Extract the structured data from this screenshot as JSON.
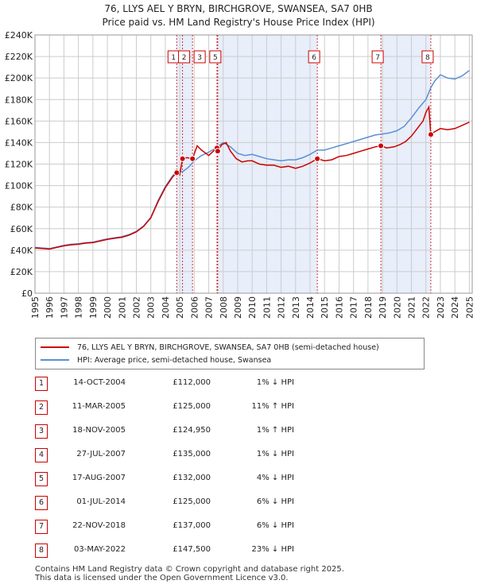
{
  "title_line1": "76, LLYS AEL Y BRYN, BIRCHGROVE, SWANSEA, SA7 0HB",
  "title_line2": "Price paid vs. HM Land Registry's House Price Index (HPI)",
  "colors": {
    "red": "#cc0000",
    "blue": "#5b8fd4",
    "shade": "#e8eefa",
    "grid": "#cccccc"
  },
  "chart_data": {
    "type": "line",
    "title": "76, LLYS AEL Y BRYN, BIRCHGROVE, SWANSEA, SA7 0HB — Price paid vs. HM Land Registry's House Price Index (HPI)",
    "xlim": [
      1995,
      2025.2
    ],
    "ylim": [
      0,
      240000
    ],
    "x_ticks": [
      1995,
      1996,
      1997,
      1998,
      1999,
      2000,
      2001,
      2002,
      2003,
      2004,
      2005,
      2006,
      2007,
      2008,
      2009,
      2010,
      2011,
      2012,
      2013,
      2014,
      2015,
      2016,
      2017,
      2018,
      2019,
      2020,
      2021,
      2022,
      2023,
      2024,
      2025
    ],
    "y_ticks": [
      0,
      20000,
      40000,
      60000,
      80000,
      100000,
      120000,
      140000,
      160000,
      180000,
      200000,
      220000,
      240000
    ],
    "y_tick_labels": [
      "£0",
      "£20K",
      "£40K",
      "£60K",
      "£80K",
      "£100K",
      "£120K",
      "£140K",
      "£160K",
      "£180K",
      "£200K",
      "£220K",
      "£240K"
    ],
    "shaded_spans": [
      [
        2004.79,
        2005.88
      ],
      [
        2007.57,
        2014.5
      ],
      [
        2018.9,
        2022.34
      ]
    ],
    "series": [
      {
        "name": "76, LLYS AEL Y BRYN, BIRCHGROVE, SWANSEA, SA7 0HB (semi-detached house)",
        "color": "#cc0000",
        "x": [
          1995,
          1995.5,
          1996,
          1996.5,
          1997,
          1997.5,
          1998,
          1998.5,
          1999,
          1999.5,
          2000,
          2000.5,
          2001,
          2001.5,
          2002,
          2002.5,
          2003,
          2003.5,
          2004,
          2004.5,
          2004.79,
          2005.0,
          2005.19,
          2005.5,
          2005.88,
          2006.2,
          2006.5,
          2007.0,
          2007.57,
          2007.62,
          2007.9,
          2008.2,
          2008.5,
          2008.9,
          2009.3,
          2009.7,
          2010,
          2010.5,
          2011,
          2011.5,
          2012,
          2012.5,
          2013,
          2013.5,
          2014,
          2014.5,
          2015,
          2015.5,
          2016,
          2016.5,
          2017,
          2017.5,
          2018,
          2018.5,
          2018.9,
          2019.3,
          2019.8,
          2020.2,
          2020.6,
          2021,
          2021.4,
          2021.8,
          2022.0,
          2022.2,
          2022.34,
          2022.6,
          2023,
          2023.5,
          2024,
          2024.5,
          2025
        ],
        "values": [
          42000,
          41500,
          41000,
          42500,
          44000,
          45000,
          45500,
          46500,
          47000,
          48500,
          50000,
          51000,
          52000,
          54000,
          57000,
          62000,
          70000,
          85000,
          98000,
          108000,
          112000,
          110000,
          125000,
          126000,
          124950,
          137000,
          133000,
          128000,
          135000,
          132000,
          138000,
          140000,
          132000,
          125000,
          122000,
          123000,
          123000,
          120000,
          119000,
          119000,
          117000,
          118000,
          116000,
          118000,
          121000,
          125000,
          123000,
          124000,
          127000,
          128000,
          130000,
          132000,
          134000,
          136000,
          137000,
          135000,
          136000,
          138000,
          141000,
          146000,
          153000,
          160000,
          168000,
          173000,
          147500,
          150000,
          153000,
          152000,
          153000,
          156000,
          159000
        ]
      },
      {
        "name": "HPI: Average price, semi-detached house, Swansea",
        "color": "#5b8fd4",
        "x": [
          1995,
          1995.5,
          1996,
          1996.5,
          1997,
          1997.5,
          1998,
          1998.5,
          1999,
          1999.5,
          2000,
          2000.5,
          2001,
          2001.5,
          2002,
          2002.5,
          2003,
          2003.5,
          2004,
          2004.5,
          2004.79,
          2005.2,
          2005.6,
          2006,
          2006.5,
          2007,
          2007.5,
          2008,
          2008.5,
          2009,
          2009.5,
          2010,
          2010.5,
          2011,
          2011.5,
          2012,
          2012.5,
          2013,
          2013.5,
          2014,
          2014.5,
          2015,
          2015.5,
          2016,
          2016.5,
          2017,
          2017.5,
          2018,
          2018.5,
          2019,
          2019.5,
          2020,
          2020.5,
          2021,
          2021.5,
          2022,
          2022.34,
          2022.6,
          2023,
          2023.5,
          2024,
          2024.5,
          2025
        ],
        "values": [
          42500,
          42000,
          41500,
          43000,
          44500,
          45500,
          46000,
          47000,
          47500,
          49000,
          50500,
          51500,
          52500,
          54500,
          57500,
          62500,
          70500,
          86000,
          99000,
          109000,
          113000,
          113000,
          117000,
          123000,
          128000,
          131000,
          135000,
          140000,
          136000,
          130000,
          128000,
          129000,
          127000,
          125000,
          124000,
          123000,
          124000,
          124000,
          126000,
          129000,
          133000,
          133000,
          135000,
          137000,
          139000,
          141000,
          143000,
          145000,
          147000,
          148000,
          149000,
          151000,
          155000,
          163000,
          172000,
          180000,
          191000,
          197000,
          203000,
          200000,
          199000,
          202000,
          207000
        ]
      }
    ],
    "sale_points": [
      {
        "label": "1",
        "x": 2004.79,
        "y": 112000
      },
      {
        "label": "2",
        "x": 2005.19,
        "y": 125000
      },
      {
        "label": "3",
        "x": 2005.88,
        "y": 124950
      },
      {
        "label": "4",
        "x": 2007.57,
        "y": 135000
      },
      {
        "label": "5",
        "x": 2007.62,
        "y": 132000
      },
      {
        "label": "6",
        "x": 2014.5,
        "y": 125000
      },
      {
        "label": "7",
        "x": 2018.89,
        "y": 137000
      },
      {
        "label": "8",
        "x": 2022.34,
        "y": 147500
      }
    ],
    "top_markers": [
      "1",
      "2",
      "3",
      "5",
      "6",
      "7",
      "8"
    ]
  },
  "legend": {
    "red_label": "76, LLYS AEL Y BRYN, BIRCHGROVE, SWANSEA, SA7 0HB (semi-detached house)",
    "blue_label": "HPI: Average price, semi-detached house, Swansea"
  },
  "sales": [
    {
      "num": "1",
      "date": "14-OCT-2004",
      "price": "£112,000",
      "hpi": "1% ↓ HPI"
    },
    {
      "num": "2",
      "date": "11-MAR-2005",
      "price": "£125,000",
      "hpi": "11% ↑ HPI"
    },
    {
      "num": "3",
      "date": "18-NOV-2005",
      "price": "£124,950",
      "hpi": "1% ↑ HPI"
    },
    {
      "num": "4",
      "date": "27-JUL-2007",
      "price": "£135,000",
      "hpi": "1% ↓ HPI"
    },
    {
      "num": "5",
      "date": "17-AUG-2007",
      "price": "£132,000",
      "hpi": "4% ↓ HPI"
    },
    {
      "num": "6",
      "date": "01-JUL-2014",
      "price": "£125,000",
      "hpi": "6% ↓ HPI"
    },
    {
      "num": "7",
      "date": "22-NOV-2018",
      "price": "£137,000",
      "hpi": "6% ↓ HPI"
    },
    {
      "num": "8",
      "date": "03-MAY-2022",
      "price": "£147,500",
      "hpi": "23% ↓ HPI"
    }
  ],
  "footer_line1": "Contains HM Land Registry data © Crown copyright and database right 2025.",
  "footer_line2": "This data is licensed under the Open Government Licence v3.0."
}
